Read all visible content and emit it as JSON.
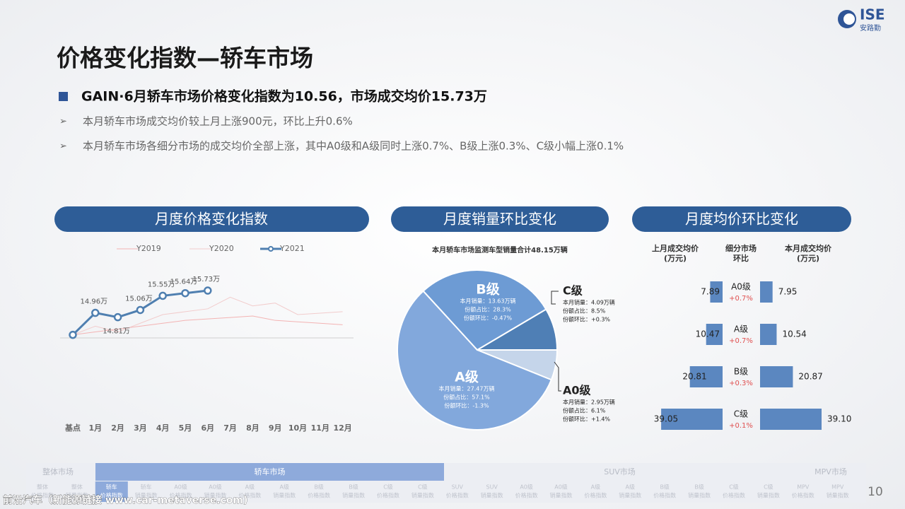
{
  "logo": {
    "name": "ISE",
    "sub": "安路勤"
  },
  "title": "价格变化指数—轿车市场",
  "headline": "GAIN·6月轿车市场价格变化指数为10.56，市场成交均价15.73万",
  "bullets": [
    "本月轿车市场成交均价较上月上涨900元，环比上升0.6%",
    "本月轿车市场各细分市场的成交均价全部上涨，其中A0级和A级同时上涨0.7%、B级上涨0.3%、C级小幅上涨0.1%"
  ],
  "sections": [
    "月度价格变化指数",
    "月度销量环比变化",
    "月度均价环比变化"
  ],
  "chart_data": [
    {
      "type": "line",
      "categories": [
        "基点",
        "1月",
        "2月",
        "3月",
        "4月",
        "5月",
        "6月",
        "7月",
        "8月",
        "9月",
        "10月",
        "11月",
        "12月"
      ],
      "ylim": [
        13.8,
        16.0
      ],
      "series": [
        {
          "name": "Y2019",
          "color": "#f3b3b3",
          "values": [
            14.2,
            14.3,
            14.4,
            14.5,
            14.6,
            14.7,
            14.75,
            14.8,
            14.85,
            14.7,
            14.65,
            14.6,
            14.55
          ]
        },
        {
          "name": "Y2020",
          "color": "#f2cccc",
          "values": [
            14.2,
            14.5,
            14.3,
            14.6,
            14.9,
            15.0,
            15.1,
            15.5,
            15.2,
            15.3,
            14.9,
            14.95,
            15.0
          ]
        },
        {
          "name": "Y2021",
          "color": "#4f7fb0",
          "values": [
            14.2,
            14.96,
            14.81,
            15.06,
            15.55,
            15.64,
            15.73,
            null,
            null,
            null,
            null,
            null,
            null
          ],
          "value_labels": [
            null,
            "14.96万",
            "14.81万",
            "15.06万",
            "15.55万",
            "15.64万",
            "15.73万",
            null,
            null,
            null,
            null,
            null,
            null
          ]
        }
      ]
    },
    {
      "type": "pie",
      "title": "本月轿车市场监测车型销量合计48.15万辆",
      "categories": [
        "C级",
        "A0级",
        "A级",
        "B级"
      ],
      "values": [
        8.5,
        6.1,
        57.1,
        28.3
      ],
      "colors": [
        "#4f7fb5",
        "#c5d5ea",
        "#82a8dc",
        "#6d9bd4"
      ],
      "details": [
        [
          "本月销量：4.09万辆",
          "份额占比：8.5%",
          "份额环比：+0.3%"
        ],
        [
          "本月销量：2.95万辆",
          "份额占比：6.1%",
          "份额环比：+1.4%"
        ],
        [
          "本月销量：27.47万辆",
          "份额占比：57.1%",
          "份额环比：-1.3%"
        ],
        [
          "本月销量：13.63万辆",
          "份额占比：28.3%",
          "份额环比：-0.47%"
        ]
      ]
    },
    {
      "type": "bar",
      "categories": [
        "A0级",
        "A级",
        "B级",
        "C级"
      ],
      "xlim": [
        0,
        40
      ],
      "middle_header": [
        "细分市场",
        "环比"
      ],
      "change_labels": [
        "+0.7%",
        "+0.7%",
        "+0.3%",
        "+0.1%"
      ],
      "series": [
        {
          "name": "上月成交均价",
          "unit": "(万元)",
          "color": "#5b87c0",
          "values": [
            7.89,
            10.47,
            20.81,
            39.05
          ]
        },
        {
          "name": "本月成交均价",
          "unit": "(万元)",
          "color": "#5b87c0",
          "values": [
            7.95,
            10.54,
            20.87,
            39.1
          ],
          "value_labels": [
            "7.95",
            "10.54",
            "20.87",
            "39.10"
          ]
        }
      ]
    }
  ],
  "nav": {
    "groups": [
      "整体市场",
      "轿车市场",
      "SUV市场",
      "MPV市场"
    ],
    "items": [
      {
        "top": "整体",
        "bottom": "价格指数"
      },
      {
        "top": "整体",
        "bottom": "销量指数"
      },
      {
        "top": "轿车",
        "bottom": "价格指数"
      },
      {
        "top": "轿车",
        "bottom": "销量指数"
      },
      {
        "top": "A0级",
        "bottom": "价格指数"
      },
      {
        "top": "A0级",
        "bottom": "销量指数"
      },
      {
        "top": "A级",
        "bottom": "价格指数"
      },
      {
        "top": "A级",
        "bottom": "销量指数"
      },
      {
        "top": "B级",
        "bottom": "价格指数"
      },
      {
        "top": "B级",
        "bottom": "销量指数"
      },
      {
        "top": "C级",
        "bottom": "价格指数"
      },
      {
        "top": "C级",
        "bottom": "销量指数"
      },
      {
        "top": "SUV",
        "bottom": "价格指数"
      },
      {
        "top": "SUV",
        "bottom": "销量指数"
      },
      {
        "top": "A0级",
        "bottom": "价格指数"
      },
      {
        "top": "A0级",
        "bottom": "销量指数"
      },
      {
        "top": "A级",
        "bottom": "价格指数"
      },
      {
        "top": "A级",
        "bottom": "销量指数"
      },
      {
        "top": "B级",
        "bottom": "价格指数"
      },
      {
        "top": "B级",
        "bottom": "销量指数"
      },
      {
        "top": "C级",
        "bottom": "价格指数"
      },
      {
        "top": "C级",
        "bottom": "销量指数"
      },
      {
        "top": "MPV",
        "bottom": "价格指数"
      },
      {
        "top": "MPV",
        "bottom": "销量指数"
      }
    ]
  },
  "page_number": "10",
  "watermark": "前沿汽车（新能源链接 www.car-metaverse.com)"
}
